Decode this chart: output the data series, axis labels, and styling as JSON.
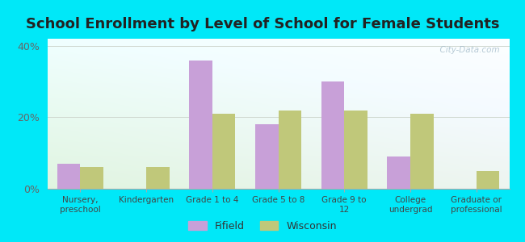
{
  "title": "School Enrollment by Level of School for Female Students",
  "categories": [
    "Nursery,\npreschool",
    "Kindergarten",
    "Grade 1 to 4",
    "Grade 5 to 8",
    "Grade 9 to\n12",
    "College\nundergrad",
    "Graduate or\nprofessional"
  ],
  "fifield": [
    7,
    0,
    36,
    18,
    30,
    9,
    0
  ],
  "wisconsin": [
    6,
    6,
    21,
    22,
    22,
    21,
    5
  ],
  "fifield_color": "#c8a0d8",
  "wisconsin_color": "#c0c87a",
  "bar_width": 0.35,
  "ylim": [
    0,
    42
  ],
  "yticks": [
    0,
    20,
    40
  ],
  "ytick_labels": [
    "0%",
    "20%",
    "40%"
  ],
  "background_color": "#00e8f8",
  "title_fontsize": 13,
  "legend_labels": [
    "Fifield",
    "Wisconsin"
  ],
  "watermark": "  City-Data.com"
}
